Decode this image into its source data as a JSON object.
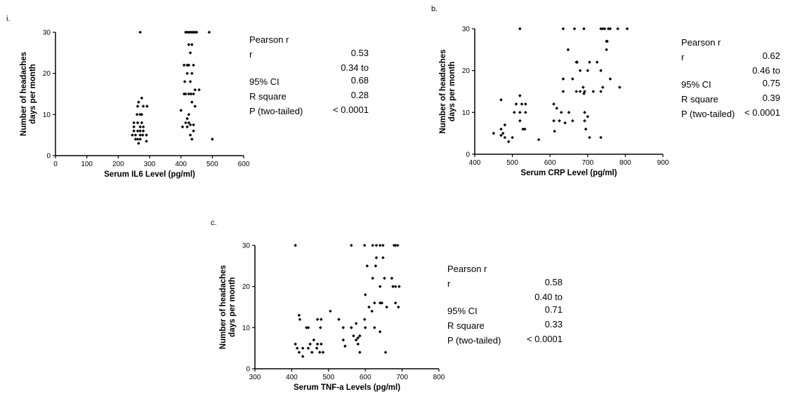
{
  "panels": [
    {
      "letter": "i.",
      "stats": {
        "header": "Pearson r",
        "r_label": "r",
        "r_value": "0.53",
        "ci_label": "95% CI",
        "ci_low": "0.34 to",
        "ci_high": "0.68",
        "rsq_label": "R square",
        "rsq_value": "0.28",
        "p_label": "P (two-tailed)",
        "p_value": "< 0.0001"
      }
    },
    {
      "letter": "b.",
      "stats": {
        "header": "Pearson r",
        "r_label": "r",
        "r_value": "0.62",
        "ci_label": "95% CI",
        "ci_low": "0.46 to",
        "ci_high": "0.75",
        "rsq_label": "R square",
        "rsq_value": "0.39",
        "p_label": "P (two-tailed)",
        "p_value": "< 0.0001"
      }
    },
    {
      "letter": "c.",
      "stats": {
        "header": "Pearson r",
        "r_label": "r",
        "r_value": "0.58",
        "ci_label": "95% CI",
        "ci_low": "0.40 to",
        "ci_high": "0.71",
        "rsq_label": "R square",
        "rsq_value": "0.33",
        "p_label": "P (two-tailed)",
        "p_value": "< 0.0001"
      }
    }
  ],
  "chart_data": [
    {
      "type": "scatter",
      "title": "",
      "xlabel": "Serum IL6 Level (pg/ml)",
      "ylabel": "Number of headaches days per month",
      "ylabel_lines": [
        "Number of headaches",
        "days per month"
      ],
      "xlim": [
        0,
        600
      ],
      "ylim": [
        0,
        30
      ],
      "xticks": [
        0,
        100,
        200,
        300,
        400,
        500,
        600
      ],
      "yticks": [
        0,
        10,
        20,
        30
      ],
      "grid": false,
      "marker_color": "#000000",
      "points": [
        [
          270,
          30
        ],
        [
          265,
          13
        ],
        [
          275,
          14
        ],
        [
          280,
          12
        ],
        [
          292,
          12
        ],
        [
          262,
          12
        ],
        [
          270,
          10
        ],
        [
          260,
          10
        ],
        [
          275,
          10
        ],
        [
          250,
          8
        ],
        [
          262,
          8
        ],
        [
          275,
          8
        ],
        [
          250,
          7
        ],
        [
          270,
          7
        ],
        [
          280,
          7
        ],
        [
          262,
          6
        ],
        [
          270,
          6
        ],
        [
          250,
          6
        ],
        [
          280,
          6
        ],
        [
          245,
          5
        ],
        [
          255,
          5
        ],
        [
          270,
          5
        ],
        [
          278,
          5
        ],
        [
          290,
          5
        ],
        [
          255,
          4
        ],
        [
          262,
          4
        ],
        [
          270,
          4
        ],
        [
          265,
          3
        ],
        [
          290,
          3.5
        ],
        [
          415,
          30
        ],
        [
          420,
          30
        ],
        [
          425,
          30
        ],
        [
          430,
          30
        ],
        [
          435,
          30
        ],
        [
          440,
          30
        ],
        [
          445,
          30
        ],
        [
          450,
          30
        ],
        [
          490,
          30
        ],
        [
          425,
          27
        ],
        [
          435,
          27
        ],
        [
          430,
          25
        ],
        [
          410,
          22
        ],
        [
          420,
          22
        ],
        [
          425,
          22
        ],
        [
          440,
          22
        ],
        [
          435,
          20
        ],
        [
          420,
          20
        ],
        [
          412,
          18
        ],
        [
          430,
          18
        ],
        [
          445,
          16
        ],
        [
          458,
          16
        ],
        [
          410,
          15
        ],
        [
          425,
          15
        ],
        [
          432,
          15
        ],
        [
          440,
          15
        ],
        [
          415,
          15
        ],
        [
          435,
          13
        ],
        [
          445,
          12
        ],
        [
          400,
          11
        ],
        [
          425,
          10
        ],
        [
          420,
          9
        ],
        [
          415,
          8
        ],
        [
          425,
          8
        ],
        [
          430,
          7.5
        ],
        [
          440,
          7.5
        ],
        [
          405,
          7
        ],
        [
          420,
          7
        ],
        [
          440,
          6
        ],
        [
          430,
          5
        ],
        [
          435,
          4
        ],
        [
          500,
          4
        ]
      ]
    },
    {
      "type": "scatter",
      "title": "",
      "xlabel": "Serum CRP Level (pg/ml)",
      "ylabel": "Number of headaches days per month",
      "ylabel_lines": [
        "Number of headaches",
        "days per month"
      ],
      "xlim": [
        400,
        900
      ],
      "ylim": [
        0,
        30
      ],
      "xticks": [
        400,
        500,
        600,
        700,
        800,
        900
      ],
      "yticks": [
        0,
        10,
        20,
        30
      ],
      "grid": false,
      "marker_color": "#000000",
      "points": [
        [
          520,
          30
        ],
        [
          635,
          30
        ],
        [
          665,
          30
        ],
        [
          690,
          30
        ],
        [
          735,
          30
        ],
        [
          740,
          30
        ],
        [
          745,
          30
        ],
        [
          755,
          30
        ],
        [
          760,
          30
        ],
        [
          780,
          30
        ],
        [
          805,
          30
        ],
        [
          750,
          27
        ],
        [
          752,
          27
        ],
        [
          648,
          25
        ],
        [
          750,
          25
        ],
        [
          670,
          22
        ],
        [
          672,
          22
        ],
        [
          705,
          22
        ],
        [
          725,
          22
        ],
        [
          680,
          20
        ],
        [
          700,
          20
        ],
        [
          735,
          20
        ],
        [
          760,
          18
        ],
        [
          635,
          18
        ],
        [
          660,
          18
        ],
        [
          688,
          16
        ],
        [
          740,
          16
        ],
        [
          785,
          16
        ],
        [
          635,
          15
        ],
        [
          670,
          15
        ],
        [
          680,
          15
        ],
        [
          692,
          15
        ],
        [
          715,
          15
        ],
        [
          735,
          15
        ],
        [
          690,
          14.5
        ],
        [
          520,
          14
        ],
        [
          610,
          12
        ],
        [
          618,
          11
        ],
        [
          630,
          10
        ],
        [
          650,
          10
        ],
        [
          692,
          10
        ],
        [
          700,
          9
        ],
        [
          625,
          8
        ],
        [
          660,
          8
        ],
        [
          692,
          8
        ],
        [
          610,
          8
        ],
        [
          640,
          7.5
        ],
        [
          695,
          6
        ],
        [
          612,
          5.5
        ],
        [
          705,
          4
        ],
        [
          735,
          4
        ],
        [
          570,
          3.5
        ],
        [
          470,
          13
        ],
        [
          510,
          12
        ],
        [
          525,
          12
        ],
        [
          535,
          12
        ],
        [
          505,
          10
        ],
        [
          520,
          10
        ],
        [
          535,
          10
        ],
        [
          520,
          8
        ],
        [
          480,
          7
        ],
        [
          528,
          6
        ],
        [
          533,
          6
        ],
        [
          470,
          6
        ],
        [
          475,
          5
        ],
        [
          450,
          5
        ],
        [
          480,
          4
        ],
        [
          500,
          4
        ],
        [
          490,
          3
        ],
        [
          470,
          4.5
        ]
      ]
    },
    {
      "type": "scatter",
      "title": "",
      "xlabel": "Serum TNF-a Levels (pg/ml)",
      "ylabel": "Number of headaches days per month",
      "ylabel_lines": [
        "Number of headaches",
        "days per month"
      ],
      "xlim": [
        300,
        800
      ],
      "ylim": [
        0,
        30
      ],
      "xticks": [
        300,
        400,
        500,
        600,
        700,
        800
      ],
      "yticks": [
        0,
        10,
        20,
        30
      ],
      "grid": false,
      "marker_color": "#000000",
      "points": [
        [
          410,
          30
        ],
        [
          562,
          30
        ],
        [
          598,
          30
        ],
        [
          620,
          30
        ],
        [
          630,
          30
        ],
        [
          640,
          30
        ],
        [
          648,
          30
        ],
        [
          678,
          30
        ],
        [
          682,
          30
        ],
        [
          688,
          30
        ],
        [
          630,
          27
        ],
        [
          648,
          27
        ],
        [
          605,
          25
        ],
        [
          628,
          25
        ],
        [
          620,
          22
        ],
        [
          652,
          22
        ],
        [
          672,
          22
        ],
        [
          640,
          20
        ],
        [
          675,
          20
        ],
        [
          682,
          20
        ],
        [
          692,
          20
        ],
        [
          600,
          18
        ],
        [
          625,
          16
        ],
        [
          640,
          16
        ],
        [
          658,
          15
        ],
        [
          645,
          16
        ],
        [
          682,
          16
        ],
        [
          610,
          15
        ],
        [
          618,
          14
        ],
        [
          690,
          15
        ],
        [
          505,
          14
        ],
        [
          528,
          12
        ],
        [
          598,
          12
        ],
        [
          420,
          13
        ],
        [
          422,
          12
        ],
        [
          470,
          12
        ],
        [
          480,
          12
        ],
        [
          440,
          10
        ],
        [
          445,
          10
        ],
        [
          478,
          10
        ],
        [
          540,
          10
        ],
        [
          562,
          10
        ],
        [
          575,
          11
        ],
        [
          600,
          10
        ],
        [
          625,
          10
        ],
        [
          640,
          9
        ],
        [
          568,
          8
        ],
        [
          575,
          7
        ],
        [
          580,
          7.5
        ],
        [
          585,
          8
        ],
        [
          540,
          7
        ],
        [
          460,
          7
        ],
        [
          580,
          6
        ],
        [
          450,
          6
        ],
        [
          470,
          6
        ],
        [
          480,
          6
        ],
        [
          545,
          5.5
        ],
        [
          410,
          6
        ],
        [
          415,
          5
        ],
        [
          430,
          5
        ],
        [
          445,
          5
        ],
        [
          468,
          5
        ],
        [
          476,
          4
        ],
        [
          485,
          4
        ],
        [
          420,
          4
        ],
        [
          455,
          4
        ],
        [
          585,
          4
        ],
        [
          655,
          4
        ],
        [
          430,
          3
        ]
      ]
    }
  ]
}
